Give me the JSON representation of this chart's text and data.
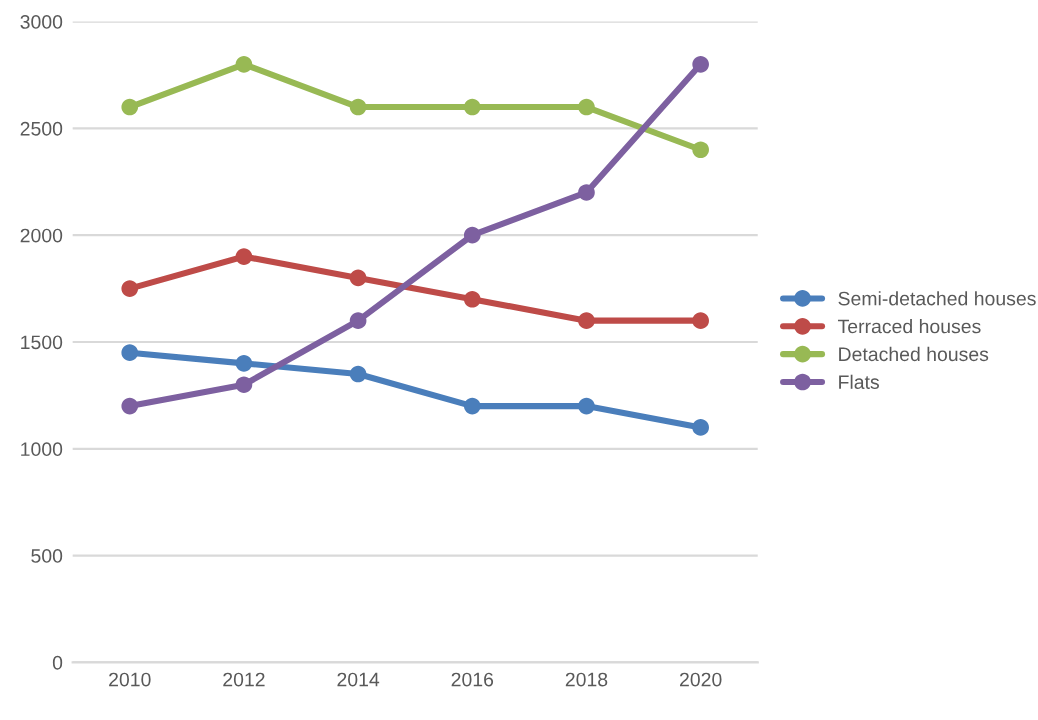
{
  "chart_data": {
    "type": "line",
    "categories": [
      "2010",
      "2012",
      "2014",
      "2016",
      "2018",
      "2020"
    ],
    "series": [
      {
        "name": "Semi-detached houses",
        "color": "#4a7ebb",
        "values": [
          1450,
          1400,
          1350,
          1200,
          1200,
          1100
        ]
      },
      {
        "name": "Terraced houses",
        "color": "#be4b48",
        "values": [
          1750,
          1900,
          1800,
          1700,
          1600,
          1600
        ]
      },
      {
        "name": "Detached houses",
        "color": "#98b954",
        "values": [
          2600,
          2800,
          2600,
          2600,
          2600,
          2400
        ]
      },
      {
        "name": "Flats",
        "color": "#7d60a0",
        "values": [
          1200,
          1300,
          1600,
          2000,
          2200,
          2800
        ]
      }
    ],
    "ylim": [
      0,
      3000
    ],
    "yticks": [
      0,
      500,
      1000,
      1500,
      2000,
      2500,
      3000
    ],
    "grid": "y",
    "legend": "right",
    "marker": "circle",
    "line_style": "solid"
  }
}
